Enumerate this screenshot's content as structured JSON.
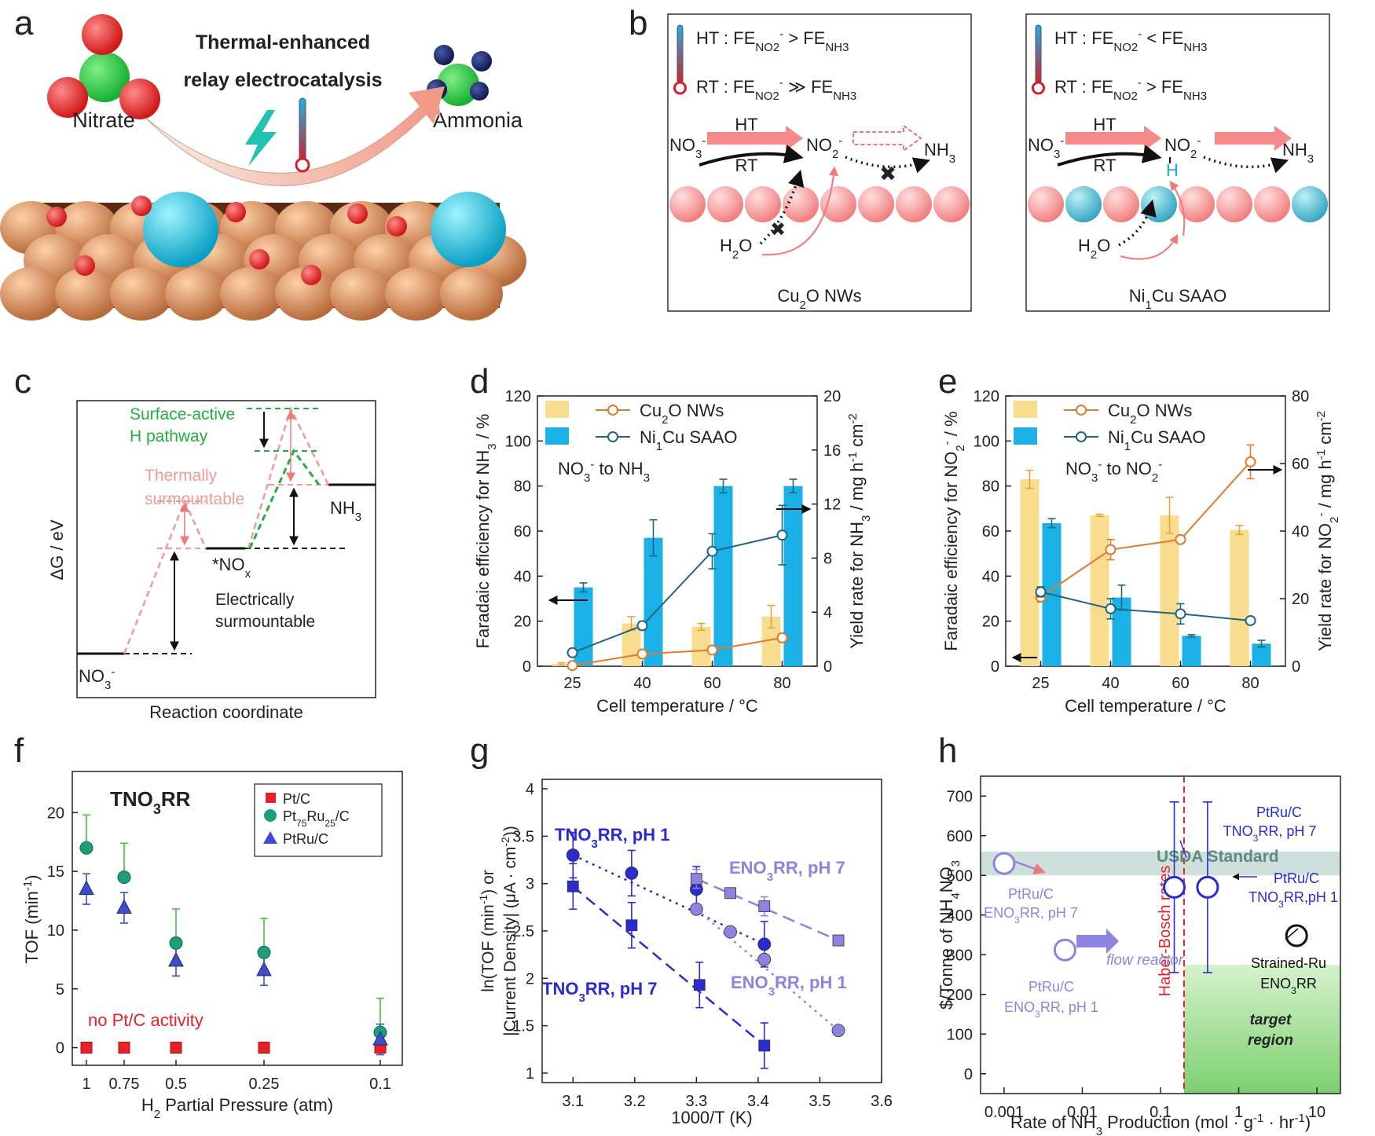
{
  "panels": {
    "a": {
      "letter": "a",
      "title_line1": "Thermal-enhanced",
      "title_line2": "relay electrocatalysis",
      "left_label": "Nitrate",
      "right_label": "Ammonia"
    },
    "b": {
      "letter": "b",
      "left": {
        "ht": "HT : FE",
        "rt": "RT : FE",
        "caption": "Cu2O NWs"
      },
      "right": {
        "ht": "HT : FE",
        "rt": "RT : FE",
        "caption": "Ni1Cu SAAO"
      },
      "ht_arrow": "HT",
      "rt_arrow": "RT",
      "no3": "NO3-",
      "no2": "NO2-",
      "nh3": "NH3",
      "h2o": "H2O",
      "h": "H"
    },
    "c": {
      "letter": "c",
      "ylabel": "ΔG / eV",
      "xlabel": "Reaction coordinate",
      "green1": "Surface-active",
      "green2": "H pathway",
      "pink1": "Thermally",
      "pink2": "surmountable",
      "elec1": "Electrically",
      "elec2": "surmountable",
      "no3": "NO3-",
      "nox": "*NOx",
      "nh3": "NH3"
    },
    "d": {
      "letter": "d",
      "note": "NO3- to NH3"
    },
    "e": {
      "letter": "e",
      "note": "NO3- to NO2-"
    },
    "f": {
      "letter": "f",
      "title": "TNO3RR",
      "note": "no Pt/C activity"
    },
    "g": {
      "letter": "g"
    },
    "h": {
      "letter": "h",
      "usda": "USDA Standard",
      "haber": "Haber-Bosch rates",
      "target1": "target",
      "target2": "region",
      "flow": "flow reactor"
    }
  },
  "chart_data": [
    {
      "panel": "d",
      "type": "bar",
      "categories": [
        "25",
        "40",
        "60",
        "80"
      ],
      "xlabel": "Cell temperature / °C",
      "ylabel": "Faradaic efficiency for NH3 / %",
      "y2label": "Yield rate for NH3 / mg h-1 cm-2",
      "ylim": [
        0,
        120
      ],
      "y2lim": [
        0,
        20
      ],
      "yticks": [
        0,
        20,
        40,
        60,
        80,
        100,
        120
      ],
      "y2ticks": [
        0,
        4,
        8,
        12,
        16,
        20
      ],
      "bar_series": [
        {
          "name": "Cu2O NWs",
          "color": "#f8dd8f",
          "values": [
            1,
            19,
            17.5,
            22
          ],
          "errors": [
            0.5,
            3,
            1.5,
            5
          ]
        },
        {
          "name": "Ni1Cu SAAO",
          "color": "#1bb0e6",
          "values": [
            35,
            57,
            80,
            80
          ],
          "errors": [
            2,
            8,
            3,
            3
          ]
        }
      ],
      "line_series": [
        {
          "name": "Cu2O NWs",
          "color": "#e07b2c",
          "values": [
            0.05,
            0.9,
            1.2,
            2.1
          ],
          "errors": [
            0.05,
            0.1,
            0.1,
            0.3
          ]
        },
        {
          "name": "Ni1Cu SAAO",
          "color": "#1f6680",
          "values": [
            1.0,
            3.0,
            8.5,
            9.7
          ],
          "errors": [
            0.1,
            0.3,
            1.3,
            2.2
          ]
        }
      ]
    },
    {
      "panel": "e",
      "type": "bar",
      "categories": [
        "25",
        "40",
        "60",
        "80"
      ],
      "xlabel": "Cell temperature / °C",
      "ylabel": "Faradaic efficiency for NO2- / %",
      "y2label": "Yield rate for NO2- / mg h-1 cm-2",
      "ylim": [
        0,
        120
      ],
      "y2lim": [
        0,
        80
      ],
      "yticks": [
        0,
        20,
        40,
        60,
        80,
        100,
        120
      ],
      "y2ticks": [
        0,
        20,
        40,
        60,
        80
      ],
      "bar_series": [
        {
          "name": "Cu2O NWs",
          "color": "#f8dd8f",
          "values": [
            83,
            67,
            67,
            60.5
          ],
          "errors": [
            4,
            0.5,
            8,
            2
          ]
        },
        {
          "name": "Ni1Cu SAAO",
          "color": "#1bb0e6",
          "values": [
            63.5,
            30.5,
            13.5,
            10
          ],
          "errors": [
            2,
            5.5,
            0.5,
            1.5
          ]
        }
      ],
      "line_series": [
        {
          "name": "Cu2O NWs",
          "color": "#e07b2c",
          "values": [
            20.5,
            34.5,
            37.5,
            60.5
          ],
          "errors": [
            1.5,
            3,
            1,
            5
          ]
        },
        {
          "name": "Ni1Cu SAAO",
          "color": "#1f6680",
          "values": [
            22,
            17,
            15.5,
            13.5
          ],
          "errors": [
            1.5,
            3,
            3,
            1
          ]
        }
      ]
    },
    {
      "panel": "f",
      "type": "scatter",
      "categories": [
        "1",
        "0.75",
        "0.5",
        "0.25",
        "0.1"
      ],
      "xlabel": "H2 Partial Pressure (atm)",
      "ylabel": "TOF (min-1)",
      "ylim": [
        -1.5,
        23.5
      ],
      "yticks": [
        0,
        5,
        10,
        15,
        20
      ],
      "series": [
        {
          "name": "Pt/C",
          "color": "#e8202a",
          "marker": "square",
          "values": [
            0,
            0,
            0,
            0,
            0
          ],
          "errors": [
            0,
            0,
            0,
            0,
            0
          ]
        },
        {
          "name": "Pt75Ru25/C",
          "color": "#1e9e78",
          "marker": "circle",
          "values": [
            17,
            14.5,
            8.9,
            8.1,
            1.3
          ],
          "errors": [
            2.8,
            2.9,
            2.9,
            2.9,
            2.9
          ]
        },
        {
          "name": "PtRu/C",
          "color": "#3d4ec6",
          "marker": "triangle",
          "values": [
            13.5,
            11.9,
            7.4,
            6.6,
            0.7
          ],
          "errors": [
            1.3,
            1.3,
            1.3,
            1.3,
            1.3
          ]
        }
      ]
    },
    {
      "panel": "g",
      "type": "scatter",
      "xlabel": "1000/T (K)",
      "ylabel": "ln(TOF (min-1) or |Current Density| (μA · cm-2))",
      "xlim": [
        3.05,
        3.6
      ],
      "ylim": [
        0.9,
        4.1
      ],
      "xticks": [
        3.1,
        3.2,
        3.3,
        3.4,
        3.5,
        3.6
      ],
      "yticks": [
        1,
        1.5,
        2,
        2.5,
        3,
        3.5,
        4
      ],
      "series": [
        {
          "name": "TNO3RR, pH 1",
          "color": "#2a2bd0",
          "marker": "circle",
          "x": [
            3.1,
            3.195,
            3.3,
            3.41
          ],
          "y": [
            3.3,
            3.11,
            2.94,
            2.36
          ],
          "errors": [
            0.24,
            0.24,
            0.24,
            0.24
          ]
        },
        {
          "name": "TNO3RR, pH 7",
          "color": "#2a2bd0",
          "marker": "square",
          "x": [
            3.1,
            3.195,
            3.305,
            3.41
          ],
          "y": [
            2.97,
            2.56,
            1.93,
            1.29
          ],
          "errors": [
            0.24,
            0.24,
            0.24,
            0.24
          ]
        },
        {
          "name": "ENO3RR, pH 7",
          "color": "#8c84e0",
          "marker": "square",
          "x": [
            3.3,
            3.355,
            3.41,
            3.53
          ],
          "y": [
            3.05,
            2.9,
            2.76,
            2.4
          ],
          "errors": [
            0.1,
            0,
            0.1,
            0
          ]
        },
        {
          "name": "ENO3RR, pH 1",
          "color": "#8c84e0",
          "marker": "circle",
          "x": [
            3.3,
            3.355,
            3.41,
            3.53
          ],
          "y": [
            2.73,
            2.49,
            2.2,
            1.45
          ],
          "errors": [
            0,
            0,
            0,
            0
          ]
        }
      ]
    },
    {
      "panel": "h",
      "type": "scatter",
      "xlabel": "Rate of NH3 Production (mol · g-1 · hr-1)",
      "ylabel": "$/Tonne of NH4NO3",
      "xscale": "log",
      "xlim": [
        0.0005,
        20
      ],
      "ylim": [
        -50,
        750
      ],
      "xticks": [
        0.001,
        0.01,
        0.1,
        1,
        10
      ],
      "xtick_labels": [
        "0.001",
        "0.01",
        "0.1",
        "1",
        "10"
      ],
      "yticks": [
        0,
        100,
        200,
        300,
        400,
        500,
        600,
        700
      ],
      "usda_band": [
        500,
        560
      ],
      "haber_bosch_x": 0.2,
      "target_region": {
        "x_min": 0.2,
        "y_max": 275
      },
      "points": [
        {
          "label1": "PtRu/C",
          "label2": "ENO3RR, pH 7",
          "x": 0.001,
          "y": 530,
          "color": "#8c84e0"
        },
        {
          "label1": "PtRu/C",
          "label2": "ENO3RR, pH 1",
          "x": 0.006,
          "y": 312,
          "color": "#8c84e0"
        },
        {
          "label1": "PtRu/C",
          "label2": "TNO3RR, pH 7",
          "x": 0.15,
          "y": 470,
          "color": "#2a2bd0",
          "ylow": 255,
          "yhigh": 685
        },
        {
          "label1": "PtRu/C",
          "label2": "TNO3RR,pH 1",
          "x": 0.4,
          "y": 470,
          "color": "#2a2bd0",
          "ylow": 255,
          "yhigh": 685
        },
        {
          "label1": "Strained-Ru",
          "label2": "ENO3RR",
          "x": 5.5,
          "y": 348,
          "color": "#111111"
        }
      ]
    }
  ]
}
